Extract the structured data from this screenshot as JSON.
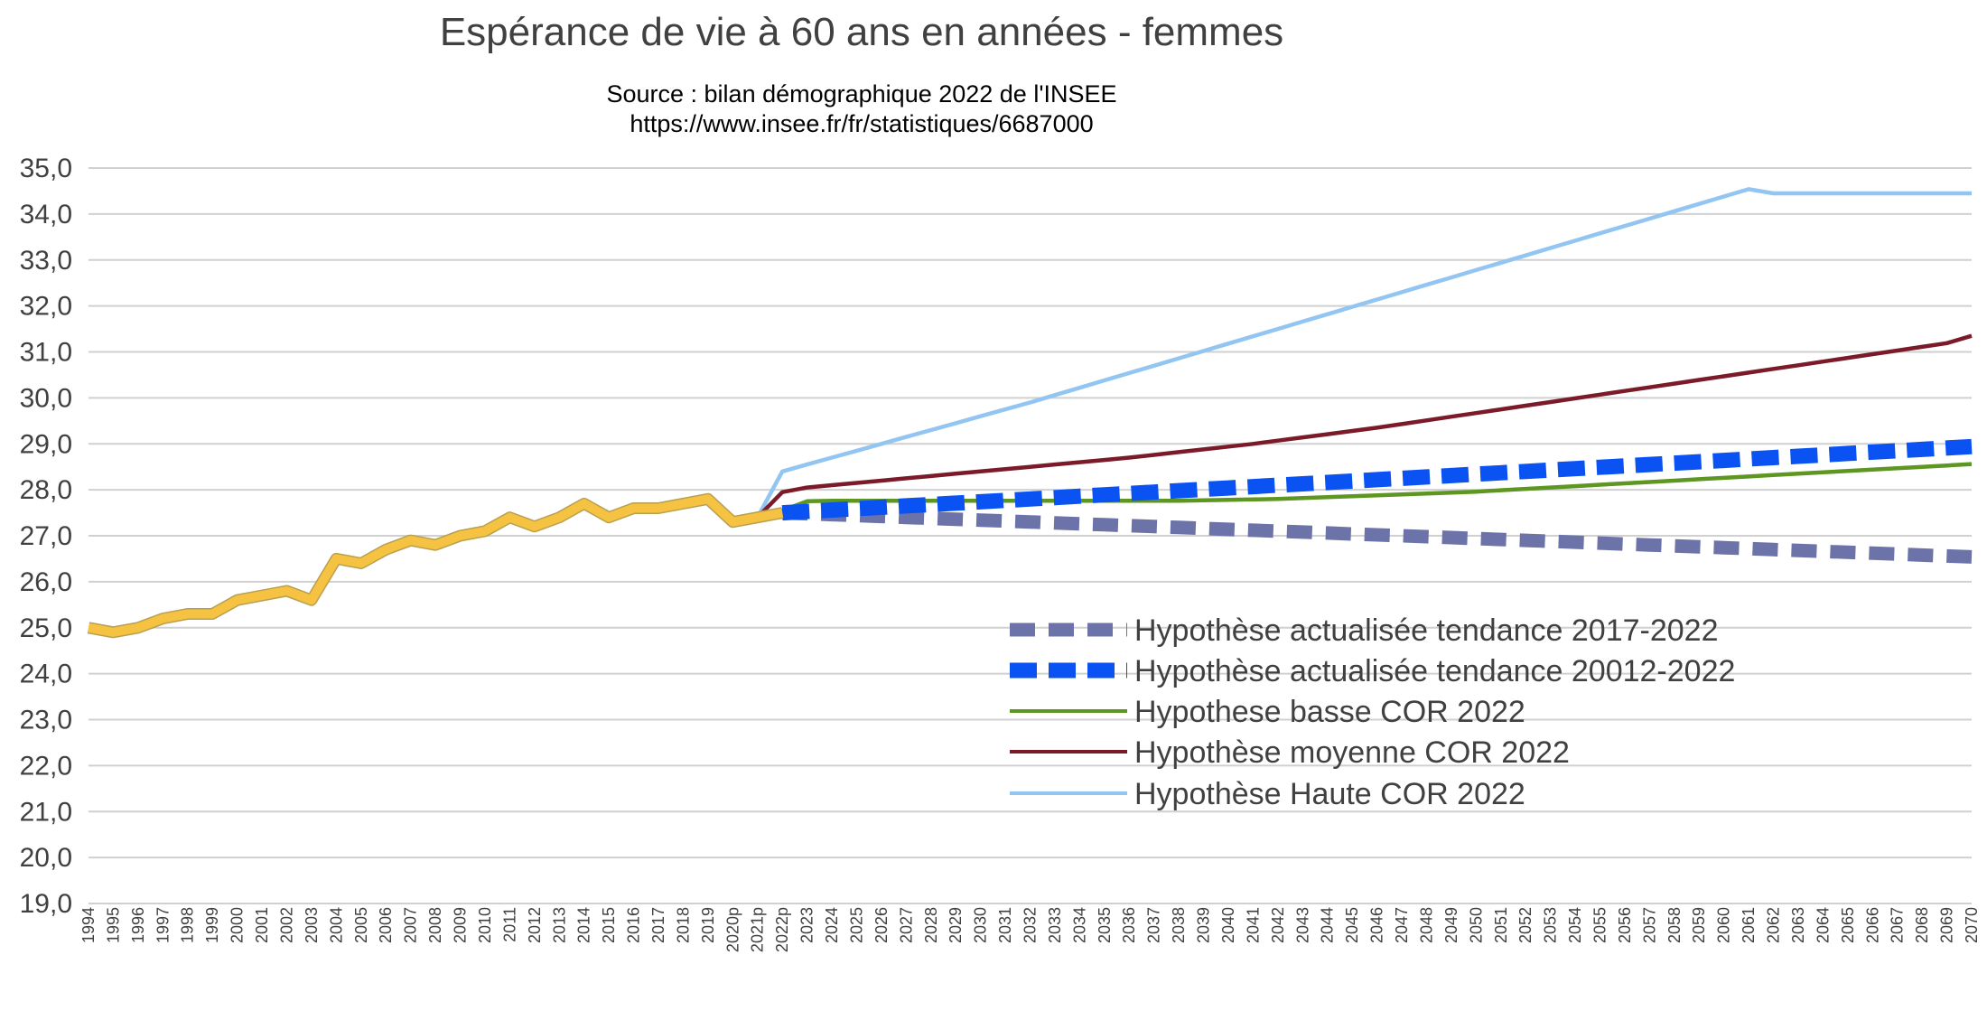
{
  "chart_data": {
    "type": "line",
    "title": "Espérance de vie à 60 ans en années - femmes",
    "subtitle": [
      "Source : bilan démographique 2022 de l'INSEE",
      "https://www.insee.fr/fr/statistiques/6687000"
    ],
    "xlabel": "",
    "ylabel": "",
    "ylim": [
      19.0,
      35.0
    ],
    "y_ticks": [
      "19,0",
      "20,0",
      "21,0",
      "22,0",
      "23,0",
      "24,0",
      "25,0",
      "26,0",
      "27,0",
      "28,0",
      "29,0",
      "30,0",
      "31,0",
      "32,0",
      "33,0",
      "34,0",
      "35,0"
    ],
    "categories": [
      "1994",
      "1995",
      "1996",
      "1997",
      "1998",
      "1999",
      "2000",
      "2001",
      "2002",
      "2003",
      "2004",
      "2005",
      "2006",
      "2007",
      "2008",
      "2009",
      "2010",
      "2011",
      "2012",
      "2013",
      "2014",
      "2015",
      "2016",
      "2017",
      "2018",
      "2019",
      "2020p",
      "2021p",
      "2022p",
      "2023",
      "2024",
      "2025",
      "2026",
      "2027",
      "2028",
      "2029",
      "2030",
      "2031",
      "2032",
      "2033",
      "2034",
      "2035",
      "2036",
      "2037",
      "2038",
      "2039",
      "2040",
      "2041",
      "2042",
      "2043",
      "2044",
      "2045",
      "2046",
      "2047",
      "2048",
      "2049",
      "2050",
      "2051",
      "2052",
      "2053",
      "2054",
      "2055",
      "2056",
      "2057",
      "2058",
      "2059",
      "2060",
      "2061",
      "2062",
      "2063",
      "2064",
      "2065",
      "2066",
      "2067",
      "2068",
      "2069",
      "2070"
    ],
    "grid": true,
    "legend_position": "bottom-right",
    "series": [
      {
        "name": "",
        "color": "#f5c242",
        "style": "solid-thick",
        "values": [
          25.0,
          24.9,
          25.0,
          25.2,
          25.3,
          25.3,
          25.6,
          25.7,
          25.8,
          25.6,
          26.5,
          26.4,
          26.7,
          26.9,
          26.8,
          27.0,
          27.1,
          27.4,
          27.2,
          27.4,
          27.7,
          27.4,
          27.6,
          27.6,
          27.7,
          27.8,
          27.3,
          27.4,
          27.5,
          null,
          null,
          null,
          null,
          null,
          null,
          null,
          null,
          null,
          null,
          null,
          null,
          null,
          null,
          null,
          null,
          null,
          null,
          null,
          null,
          null,
          null,
          null,
          null,
          null,
          null,
          null,
          null,
          null,
          null,
          null,
          null,
          null,
          null,
          null,
          null,
          null,
          null,
          null,
          null,
          null,
          null,
          null,
          null,
          null,
          null,
          null,
          null
        ]
      },
      {
        "name": "Hypothèse actualisée tendance 2017-2022",
        "color": "#6b73a8",
        "style": "dashed-thick",
        "values": [
          null,
          null,
          null,
          null,
          null,
          null,
          null,
          null,
          null,
          null,
          null,
          null,
          null,
          null,
          null,
          null,
          null,
          null,
          null,
          null,
          null,
          null,
          null,
          null,
          null,
          null,
          null,
          null,
          27.5,
          27.48,
          27.46,
          27.44,
          27.42,
          27.4,
          27.38,
          27.36,
          27.34,
          27.32,
          27.3,
          27.28,
          27.26,
          27.24,
          27.22,
          27.2,
          27.18,
          27.16,
          27.14,
          27.12,
          27.1,
          27.08,
          27.06,
          27.04,
          27.02,
          27.0,
          26.98,
          26.96,
          26.94,
          26.92,
          26.9,
          26.88,
          26.86,
          26.84,
          26.82,
          26.8,
          26.78,
          26.76,
          26.74,
          26.72,
          26.7,
          26.68,
          26.66,
          26.64,
          26.62,
          26.6,
          26.58,
          26.56,
          26.54
        ]
      },
      {
        "name": "Hypothèse actualisée tendance 20012-2022",
        "color": "#0a52f2",
        "style": "dashed-thicker",
        "values": [
          null,
          null,
          null,
          null,
          null,
          null,
          null,
          null,
          null,
          null,
          null,
          null,
          null,
          null,
          null,
          null,
          null,
          null,
          null,
          null,
          null,
          null,
          null,
          null,
          null,
          null,
          null,
          null,
          27.5,
          27.53,
          27.56,
          27.59,
          27.62,
          27.65,
          27.68,
          27.71,
          27.74,
          27.77,
          27.8,
          27.83,
          27.86,
          27.89,
          27.92,
          27.95,
          27.98,
          28.01,
          28.04,
          28.07,
          28.1,
          28.13,
          28.16,
          28.19,
          28.22,
          28.25,
          28.28,
          28.31,
          28.34,
          28.37,
          28.4,
          28.43,
          28.46,
          28.49,
          28.52,
          28.55,
          28.58,
          28.61,
          28.64,
          28.67,
          28.7,
          28.73,
          28.76,
          28.79,
          28.82,
          28.85,
          28.88,
          28.91,
          28.94
        ]
      },
      {
        "name": "Hypothese basse  COR 2022",
        "color": "#5e9622",
        "style": "solid",
        "values": [
          null,
          null,
          null,
          null,
          null,
          null,
          null,
          null,
          null,
          null,
          null,
          null,
          null,
          null,
          null,
          null,
          null,
          null,
          null,
          null,
          null,
          null,
          null,
          null,
          null,
          null,
          null,
          27.4,
          27.55,
          27.75,
          27.76,
          27.76,
          27.76,
          27.76,
          27.76,
          27.76,
          27.76,
          27.76,
          27.76,
          27.76,
          27.76,
          27.76,
          27.76,
          27.76,
          27.76,
          27.77,
          27.78,
          27.79,
          27.8,
          27.82,
          27.84,
          27.86,
          27.88,
          27.9,
          27.92,
          27.94,
          27.96,
          27.99,
          28.02,
          28.05,
          28.08,
          28.11,
          28.14,
          28.17,
          28.2,
          28.23,
          28.26,
          28.29,
          28.32,
          28.35,
          28.38,
          28.41,
          28.44,
          28.47,
          28.5,
          28.53,
          28.56
        ]
      },
      {
        "name": "Hypothèse moyenne COR 2022",
        "color": "#7b1a28",
        "style": "solid",
        "values": [
          null,
          null,
          null,
          null,
          null,
          null,
          null,
          null,
          null,
          null,
          null,
          null,
          null,
          null,
          null,
          null,
          null,
          null,
          null,
          null,
          null,
          null,
          null,
          null,
          null,
          null,
          null,
          27.4,
          27.95,
          28.05,
          28.1,
          28.15,
          28.2,
          28.25,
          28.3,
          28.35,
          28.4,
          28.45,
          28.5,
          28.55,
          28.6,
          28.65,
          28.7,
          28.76,
          28.82,
          28.88,
          28.94,
          29.0,
          29.07,
          29.14,
          29.21,
          29.28,
          29.35,
          29.43,
          29.51,
          29.59,
          29.67,
          29.75,
          29.83,
          29.91,
          29.99,
          30.07,
          30.15,
          30.23,
          30.31,
          30.39,
          30.47,
          30.55,
          30.63,
          30.71,
          30.79,
          30.87,
          30.95,
          31.03,
          31.11,
          31.19,
          31.35
        ]
      },
      {
        "name": "Hypothèse Haute COR 2022",
        "color": "#92c5f2",
        "style": "solid",
        "values": [
          null,
          null,
          null,
          null,
          null,
          null,
          null,
          null,
          null,
          null,
          null,
          null,
          null,
          null,
          null,
          null,
          null,
          null,
          null,
          null,
          null,
          null,
          null,
          null,
          null,
          null,
          null,
          27.4,
          28.4,
          28.55,
          28.7,
          28.85,
          29.0,
          29.15,
          29.3,
          29.45,
          29.6,
          29.75,
          29.9,
          30.06,
          30.22,
          30.38,
          30.54,
          30.7,
          30.86,
          31.02,
          31.18,
          31.34,
          31.5,
          31.66,
          31.82,
          31.98,
          32.14,
          32.3,
          32.46,
          32.62,
          32.78,
          32.94,
          33.1,
          33.26,
          33.42,
          33.58,
          33.74,
          33.9,
          34.06,
          34.22,
          34.38,
          34.54,
          34.45,
          34.45,
          34.45,
          34.45,
          34.45,
          34.45,
          34.45,
          34.45,
          34.45
        ]
      }
    ]
  },
  "legend": {
    "s1": "Hypothèse actualisée tendance 2017-2022",
    "s2": "Hypothèse actualisée tendance 20012-2022",
    "s3": "Hypothese basse  COR 2022",
    "s4": "Hypothèse moyenne COR 2022",
    "s5": "Hypothèse Haute COR 2022"
  }
}
